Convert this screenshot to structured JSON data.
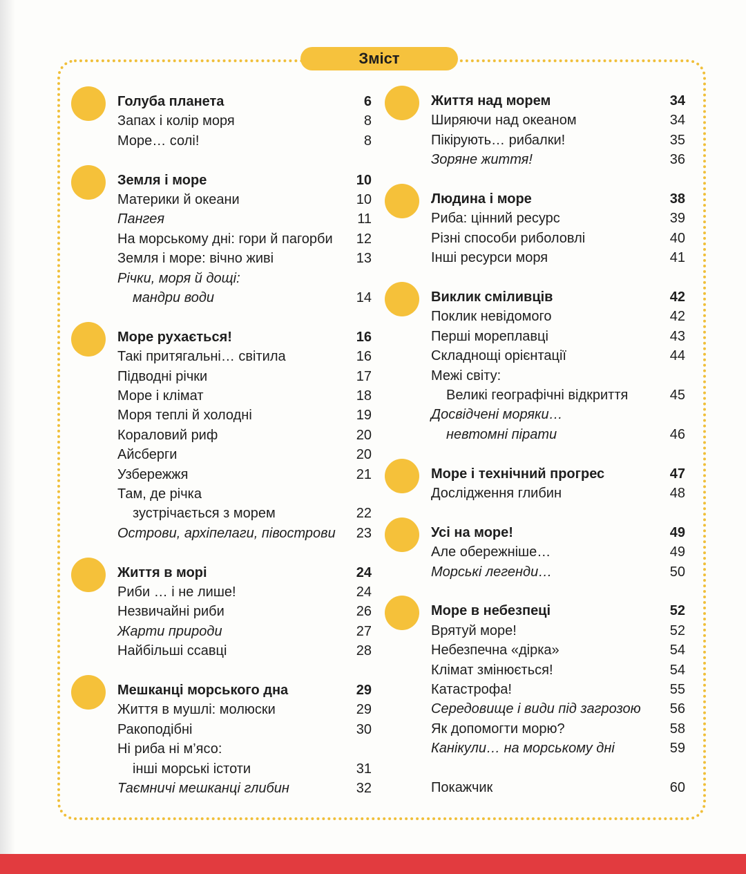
{
  "title": "Зміст",
  "toc": {
    "left": [
      {
        "heading": {
          "title": "Голуба планета",
          "page": 6
        },
        "entries": [
          {
            "lines": [
              "Запах і колір моря"
            ],
            "page": 8
          },
          {
            "lines": [
              "Море… солі!"
            ],
            "page": 8
          }
        ]
      },
      {
        "heading": {
          "title": "Земля і море",
          "page": 10
        },
        "entries": [
          {
            "lines": [
              "Материки й океани"
            ],
            "page": 10
          },
          {
            "lines": [
              "Пангея"
            ],
            "page": 11,
            "italic": true
          },
          {
            "lines": [
              "На морському дні: гори й пагорби"
            ],
            "page": 12
          },
          {
            "lines": [
              "Земля і море: вічно живі"
            ],
            "page": 13
          },
          {
            "lines": [
              "Річки, моря й дощі:",
              "мандри води"
            ],
            "page": 14,
            "italic": true
          }
        ]
      },
      {
        "heading": {
          "title": "Море рухається!",
          "page": 16
        },
        "entries": [
          {
            "lines": [
              "Такі притягальні… світила"
            ],
            "page": 16
          },
          {
            "lines": [
              "Підводні річки"
            ],
            "page": 17
          },
          {
            "lines": [
              "Море і клімат"
            ],
            "page": 18
          },
          {
            "lines": [
              "Моря теплі й холодні"
            ],
            "page": 19
          },
          {
            "lines": [
              "Кораловий риф"
            ],
            "page": 20
          },
          {
            "lines": [
              "Айсберги"
            ],
            "page": 20
          },
          {
            "lines": [
              "Узбережжя"
            ],
            "page": 21
          },
          {
            "lines": [
              "Там, де річка",
              "зустрічається з морем"
            ],
            "page": 22
          },
          {
            "lines": [
              "Острови, архіпелаги, півострови"
            ],
            "page": 23,
            "italic": true
          }
        ]
      },
      {
        "heading": {
          "title": "Життя в морі",
          "page": 24
        },
        "entries": [
          {
            "lines": [
              "Риби … і не лише!"
            ],
            "page": 24
          },
          {
            "lines": [
              "Незвичайні риби"
            ],
            "page": 26
          },
          {
            "lines": [
              "Жарти природи"
            ],
            "page": 27,
            "italic": true
          },
          {
            "lines": [
              "Найбільші ссавці"
            ],
            "page": 28
          }
        ]
      },
      {
        "heading": {
          "title": "Мешканці морського дна",
          "page": 29
        },
        "entries": [
          {
            "lines": [
              "Життя в мушлі: молюски"
            ],
            "page": 29
          },
          {
            "lines": [
              "Ракоподібні"
            ],
            "page": 30
          },
          {
            "lines": [
              "Ні риба ні м’ясо:",
              "інші морські істоти"
            ],
            "page": 31
          },
          {
            "lines": [
              "Таємничі мешканці глибин"
            ],
            "page": 32,
            "italic": true
          }
        ]
      }
    ],
    "right": [
      {
        "heading": {
          "title": "Життя над морем",
          "page": 34
        },
        "entries": [
          {
            "lines": [
              "Ширяючи над океаном"
            ],
            "page": 34
          },
          {
            "lines": [
              "Пікірують… рибалки!"
            ],
            "page": 35
          },
          {
            "lines": [
              "Зоряне життя!"
            ],
            "page": 36,
            "italic": true
          }
        ]
      },
      {
        "heading": {
          "title": "Людина і море",
          "page": 38
        },
        "entries": [
          {
            "lines": [
              "Риба: цінний ресурс"
            ],
            "page": 39
          },
          {
            "lines": [
              "Різні способи риболовлі"
            ],
            "page": 40
          },
          {
            "lines": [
              "Інші ресурси моря"
            ],
            "page": 41
          }
        ]
      },
      {
        "heading": {
          "title": "Виклик сміливців",
          "page": 42
        },
        "entries": [
          {
            "lines": [
              "Поклик невідомого"
            ],
            "page": 42
          },
          {
            "lines": [
              "Перші мореплавці"
            ],
            "page": 43
          },
          {
            "lines": [
              "Складнощі орієнтації"
            ],
            "page": 44
          },
          {
            "lines": [
              "Межі світу:",
              "Великі географічні відкриття"
            ],
            "page": 45
          },
          {
            "lines": [
              "Досвідчені моряки…",
              "невтомні пірати"
            ],
            "page": 46,
            "italic": true
          }
        ]
      },
      {
        "heading": {
          "title": "Море і технічний прогрес",
          "page": 47
        },
        "entries": [
          {
            "lines": [
              "Дослідження глибин"
            ],
            "page": 48
          }
        ]
      },
      {
        "heading": {
          "title": "Усі на море!",
          "page": 49
        },
        "entries": [
          {
            "lines": [
              "Але обережніше…"
            ],
            "page": 49
          },
          {
            "lines": [
              "Морські легенди…"
            ],
            "page": 50,
            "italic": true
          }
        ]
      },
      {
        "heading": {
          "title": "Море в небезпеці",
          "page": 52
        },
        "entries": [
          {
            "lines": [
              "Врятуй море!"
            ],
            "page": 52
          },
          {
            "lines": [
              "Небезпечна «дірка»"
            ],
            "page": 54
          },
          {
            "lines": [
              "Клімат змінюється!"
            ],
            "page": 54
          },
          {
            "lines": [
              "Катастрофа!"
            ],
            "page": 55
          },
          {
            "lines": [
              "Середовище і види під загрозою"
            ],
            "page": 56,
            "italic": true
          },
          {
            "lines": [
              "Як допомогти морю?"
            ],
            "page": 58
          },
          {
            "lines": [
              "Канікули… на морському дні"
            ],
            "page": 59,
            "italic": true
          }
        ]
      }
    ],
    "index": {
      "title": "Покажчик",
      "page": 60
    }
  }
}
